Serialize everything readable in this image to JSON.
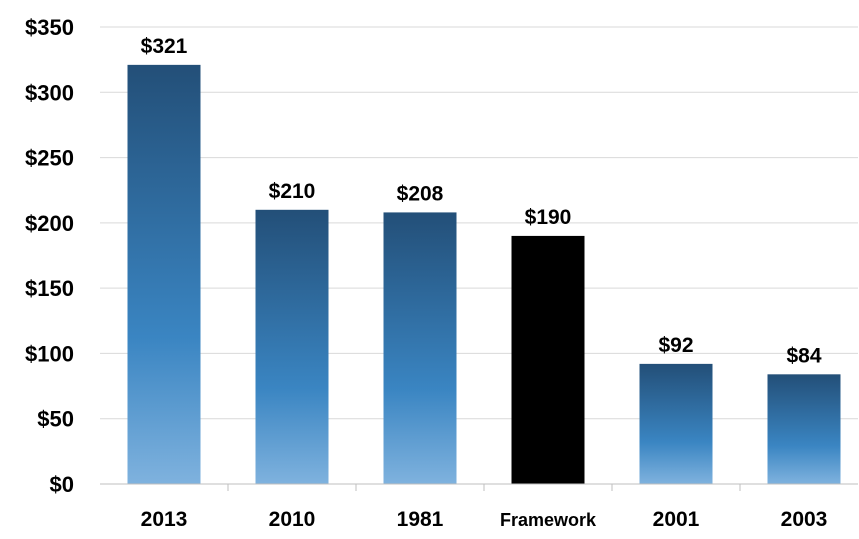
{
  "chart_data": {
    "type": "bar",
    "categories": [
      "2013",
      "2010",
      "1981",
      "Framework",
      "2001",
      "2003"
    ],
    "values": [
      321,
      210,
      208,
      190,
      92,
      84
    ],
    "data_labels": [
      "$321",
      "$210",
      "$208",
      "$190",
      "$92",
      "$84"
    ],
    "ylim": [
      0,
      350
    ],
    "yticks": [
      0,
      50,
      100,
      150,
      200,
      250,
      300,
      350
    ],
    "ytick_labels": [
      "$0",
      "$50",
      "$100",
      "$150",
      "$200",
      "$250",
      "$300",
      "$350"
    ],
    "grid": true,
    "legend": "none",
    "title": "",
    "xlabel": "",
    "ylabel": "",
    "colors": {
      "bar_top": "#234f78",
      "bar_mid": "#3a85c2",
      "bar_bottom": "#7fb2de",
      "highlight": "#000000",
      "gridline": "#d9d9d9",
      "axis": "#bfbfbf"
    },
    "highlight_category": "Framework"
  }
}
